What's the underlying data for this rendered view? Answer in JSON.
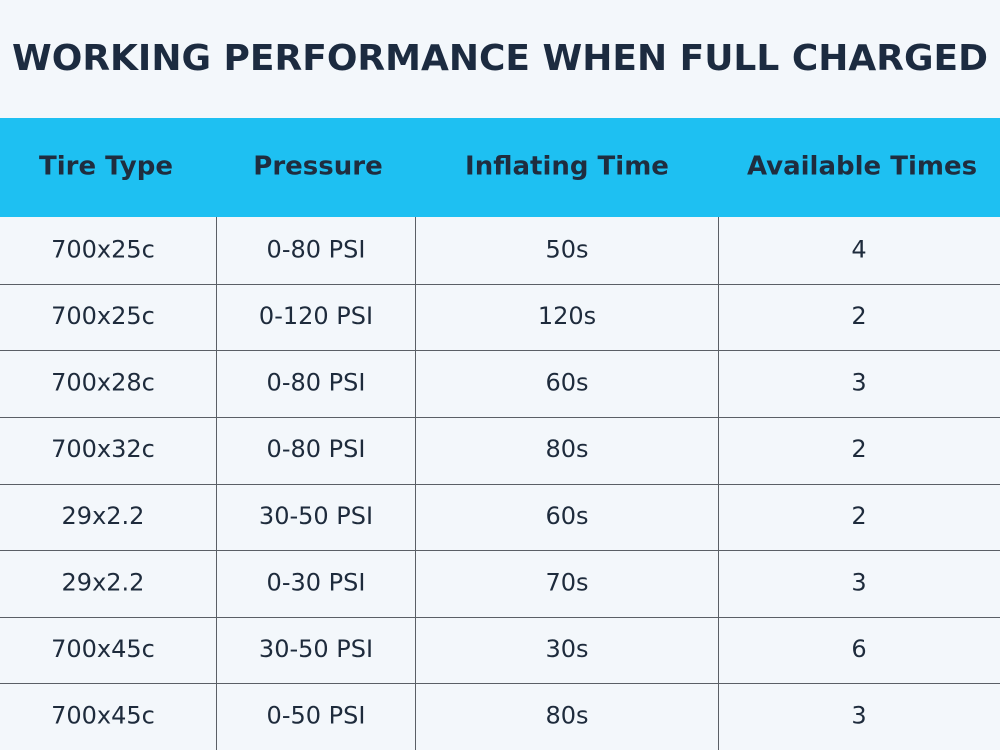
{
  "title": "WORKING PERFORMANCE WHEN FULL CHARGED",
  "table": {
    "header": [
      "Tire Type",
      "Pressure",
      "Inflating Time",
      "Available Times"
    ],
    "rows": [
      [
        "700x25c",
        "0-80 PSI",
        "50s",
        "4"
      ],
      [
        "700x25c",
        "0-120 PSI",
        "120s",
        "2"
      ],
      [
        "700x28c",
        "0-80 PSI",
        "60s",
        "3"
      ],
      [
        "700x32c",
        "0-80 PSI",
        "80s",
        "2"
      ],
      [
        "29x2.2",
        "30-50 PSI",
        "60s",
        "2"
      ],
      [
        "29x2.2",
        "0-30 PSI",
        "70s",
        "3"
      ],
      [
        "700x45c",
        "30-50 PSI",
        "30s",
        "6"
      ],
      [
        "700x45c",
        "0-50 PSI",
        "80s",
        "3"
      ]
    ]
  }
}
